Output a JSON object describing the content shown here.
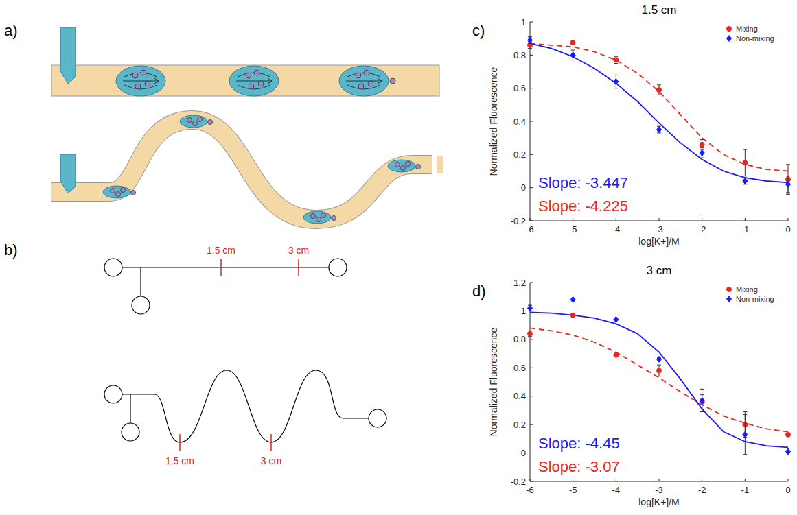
{
  "diagram": {
    "panel_labels": [
      "a)",
      "b)"
    ],
    "straight_marks": [
      "1.5 cm",
      "3 cm"
    ],
    "serpentine_marks": [
      "1.5 cm",
      "3 cm"
    ]
  },
  "chart_data": [
    {
      "type": "scatter",
      "panel_label": "c)",
      "title": "1.5 cm",
      "x_label": "log[K+]/M",
      "y_label": "Normalized Fluorescence",
      "xlim": [
        -6,
        0
      ],
      "ylim": [
        -0.2,
        1
      ],
      "xticks": [
        -6,
        -5,
        -4,
        -3,
        -2,
        -1,
        0
      ],
      "yticks": [
        -0.2,
        0,
        0.2,
        0.4,
        0.6,
        0.8,
        1
      ],
      "grid": false,
      "legend": "top-right",
      "series": [
        {
          "type": "line",
          "color": "#e8281e",
          "line_style": "dashed",
          "x": [
            -6,
            -5.5,
            -5,
            -4.5,
            -4,
            -3.5,
            -3,
            -2.5,
            -2,
            -1.5,
            -1,
            -0.5,
            0
          ],
          "values": [
            0.87,
            0.86,
            0.85,
            0.82,
            0.77,
            0.69,
            0.58,
            0.44,
            0.3,
            0.2,
            0.14,
            0.11,
            0.1
          ]
        },
        {
          "type": "line",
          "color": "#1a1aff",
          "line_style": "solid",
          "x": [
            -6,
            -5.5,
            -5,
            -4.5,
            -4,
            -3.5,
            -3,
            -2.5,
            -2,
            -1.5,
            -1,
            -0.5,
            0
          ],
          "values": [
            0.87,
            0.84,
            0.79,
            0.72,
            0.63,
            0.52,
            0.39,
            0.27,
            0.17,
            0.1,
            0.06,
            0.04,
            0.03
          ]
        },
        {
          "name": "Mixing",
          "type": "scatter",
          "color": "#e8281e",
          "marker": "circle",
          "x": [
            -6,
            -5,
            -4,
            -3,
            -2,
            -1,
            0
          ],
          "values": [
            0.86,
            0.875,
            0.77,
            0.59,
            0.26,
            0.15,
            0.05
          ],
          "errors": [
            0.02,
            0.01,
            0.02,
            0.03,
            0.03,
            0.08,
            0.09
          ]
        },
        {
          "name": "Non-mixing",
          "type": "scatter",
          "color": "#1a1aff",
          "marker": "diamond",
          "x": [
            -6,
            -5,
            -4,
            -3,
            -2,
            -1,
            0
          ],
          "values": [
            0.89,
            0.8,
            0.64,
            0.35,
            0.21,
            0.04,
            0.02
          ],
          "errors": [
            0.02,
            0.03,
            0.04,
            0.02,
            0.03,
            0.02,
            0.05
          ]
        }
      ],
      "annotations": [
        {
          "text": "Slope: -3.447",
          "color": "#1a1aff"
        },
        {
          "text": "Slope: -4.225",
          "color": "#e8281e"
        }
      ]
    },
    {
      "type": "scatter",
      "panel_label": "d)",
      "title": "3 cm",
      "x_label": "log[K+]/M",
      "y_label": "Normalized Fluorescence",
      "xlim": [
        -6,
        0
      ],
      "ylim": [
        -0.2,
        1.2
      ],
      "xticks": [
        -6,
        -5,
        -4,
        -3,
        -2,
        -1,
        0
      ],
      "yticks": [
        -0.2,
        0,
        0.2,
        0.4,
        0.6,
        0.8,
        1,
        1.2
      ],
      "grid": false,
      "legend": "top-right",
      "series": [
        {
          "type": "line",
          "color": "#e8281e",
          "line_style": "dashed",
          "x": [
            -6,
            -5.5,
            -5,
            -4.5,
            -4,
            -3.5,
            -3,
            -2.5,
            -2,
            -1.5,
            -1,
            -0.5,
            0
          ],
          "values": [
            0.88,
            0.86,
            0.83,
            0.78,
            0.71,
            0.62,
            0.53,
            0.43,
            0.34,
            0.26,
            0.21,
            0.17,
            0.15
          ]
        },
        {
          "type": "line",
          "color": "#1a1aff",
          "line_style": "solid",
          "x": [
            -6,
            -5.5,
            -5,
            -4.5,
            -4,
            -3.5,
            -3,
            -2.5,
            -2,
            -1.5,
            -1,
            -0.5,
            0
          ],
          "values": [
            0.99,
            0.985,
            0.97,
            0.95,
            0.91,
            0.84,
            0.71,
            0.52,
            0.31,
            0.15,
            0.08,
            0.05,
            0.04
          ]
        },
        {
          "name": "Mixing",
          "type": "scatter",
          "color": "#e8281e",
          "marker": "circle",
          "x": [
            -6,
            -5,
            -4,
            -3,
            -2,
            -1,
            0
          ],
          "values": [
            0.84,
            0.97,
            0.69,
            0.58,
            0.36,
            0.2,
            0.13
          ],
          "errors": [
            0.02,
            0.005,
            0.01,
            0.04,
            0.05,
            0.09,
            0.01
          ]
        },
        {
          "name": "Non-mixing",
          "type": "scatter",
          "color": "#1a1aff",
          "marker": "diamond",
          "x": [
            -6,
            -5,
            -4,
            -3,
            -2,
            -1,
            0
          ],
          "values": [
            1.02,
            1.08,
            0.94,
            0.66,
            0.37,
            0.13,
            0.01
          ],
          "errors": [
            0.02,
            0.01,
            0.005,
            0.01,
            0.08,
            0.14,
            0.005
          ]
        }
      ],
      "annotations": [
        {
          "text": "Slope: -4.45",
          "color": "#1a1aff"
        },
        {
          "text": "Slope: -3.07",
          "color": "#e8281e"
        }
      ]
    }
  ]
}
